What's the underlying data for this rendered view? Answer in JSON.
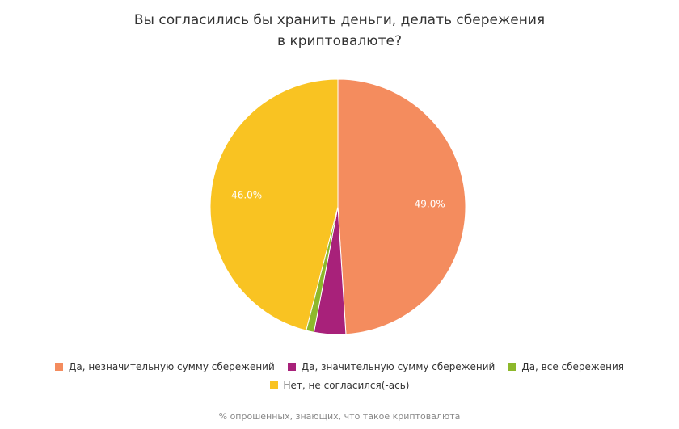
{
  "chart_data": {
    "type": "pie",
    "title_lines": [
      "Вы согласились бы хранить деньги, делать сбережения",
      "в криптовалюте?"
    ],
    "subtitle": "% опрошенных, знающих, что такое криптовалюта",
    "start": "top, clockwise",
    "legend_position": "bottom",
    "slices": [
      {
        "name": "Да, незначительную сумму сбережений",
        "value": 49.0,
        "label": "49.0%",
        "color": "#F48C5E"
      },
      {
        "name": "Да, значительную сумму сбережений",
        "value": 4.0,
        "label": "",
        "color": "#A8217A"
      },
      {
        "name": "Да, все сбережения",
        "value": 1.0,
        "label": "",
        "color": "#8DB82B"
      },
      {
        "name": "Нет, не согласился(-ась)",
        "value": 46.0,
        "label": "46.0%",
        "color": "#F9C322"
      }
    ]
  }
}
